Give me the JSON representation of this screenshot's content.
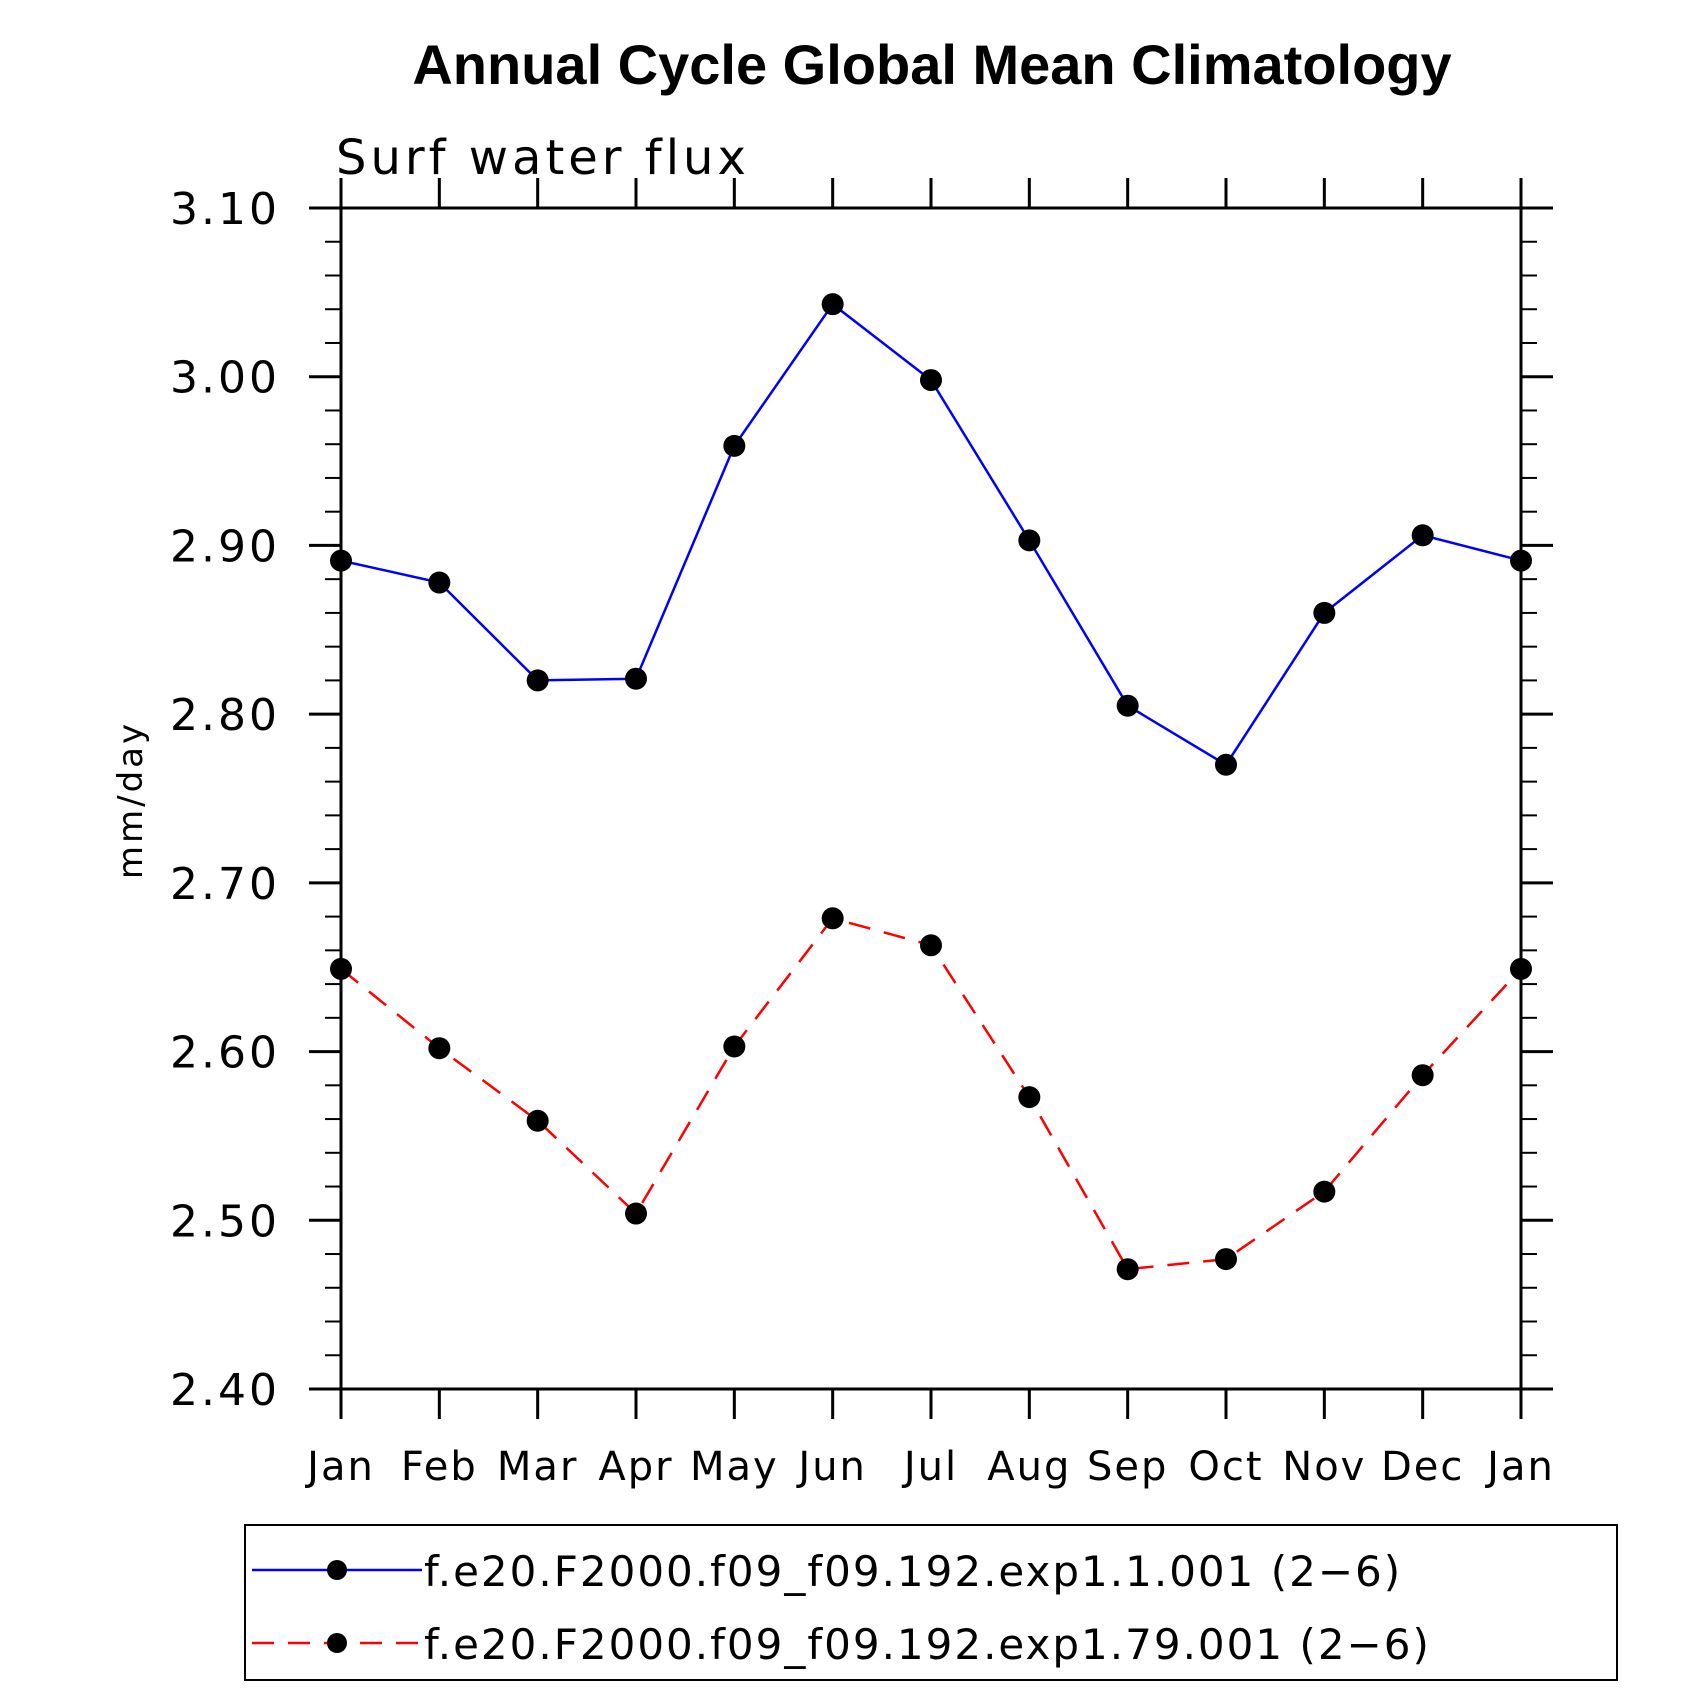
{
  "chart_data": {
    "type": "line",
    "title": "Annual Cycle Global Mean Climatology",
    "subtitle": "Surf water flux",
    "xlabel": "",
    "ylabel": "mm/day",
    "ylim": [
      2.4,
      3.1
    ],
    "yticks": [
      "2.40",
      "2.50",
      "2.60",
      "2.70",
      "2.80",
      "2.90",
      "3.00",
      "3.10"
    ],
    "categories": [
      "Jan",
      "Feb",
      "Mar",
      "Apr",
      "May",
      "Jun",
      "Jul",
      "Aug",
      "Sep",
      "Oct",
      "Nov",
      "Dec",
      "Jan"
    ],
    "grid": false,
    "legend_position": "bottom",
    "series": [
      {
        "name": "f.e20.F2000.f09_f09.192.exp1.1.001 (2−6)",
        "values": [
          2.891,
          2.878,
          2.82,
          2.821,
          2.959,
          3.043,
          2.998,
          2.903,
          2.805,
          2.77,
          2.86,
          2.906,
          2.891
        ],
        "color": "#0000ff",
        "line_style": "solid",
        "marker": "filled-circle",
        "marker_color": "#000000"
      },
      {
        "name": "f.e20.F2000.f09_f09.192.exp1.79.001 (2−6)",
        "values": [
          2.649,
          2.602,
          2.559,
          2.504,
          2.603,
          2.679,
          2.663,
          2.573,
          2.471,
          2.477,
          2.517,
          2.586,
          2.649
        ],
        "color": "#ff0000",
        "line_style": "dashed",
        "marker": "filled-circle",
        "marker_color": "#000000"
      }
    ]
  }
}
